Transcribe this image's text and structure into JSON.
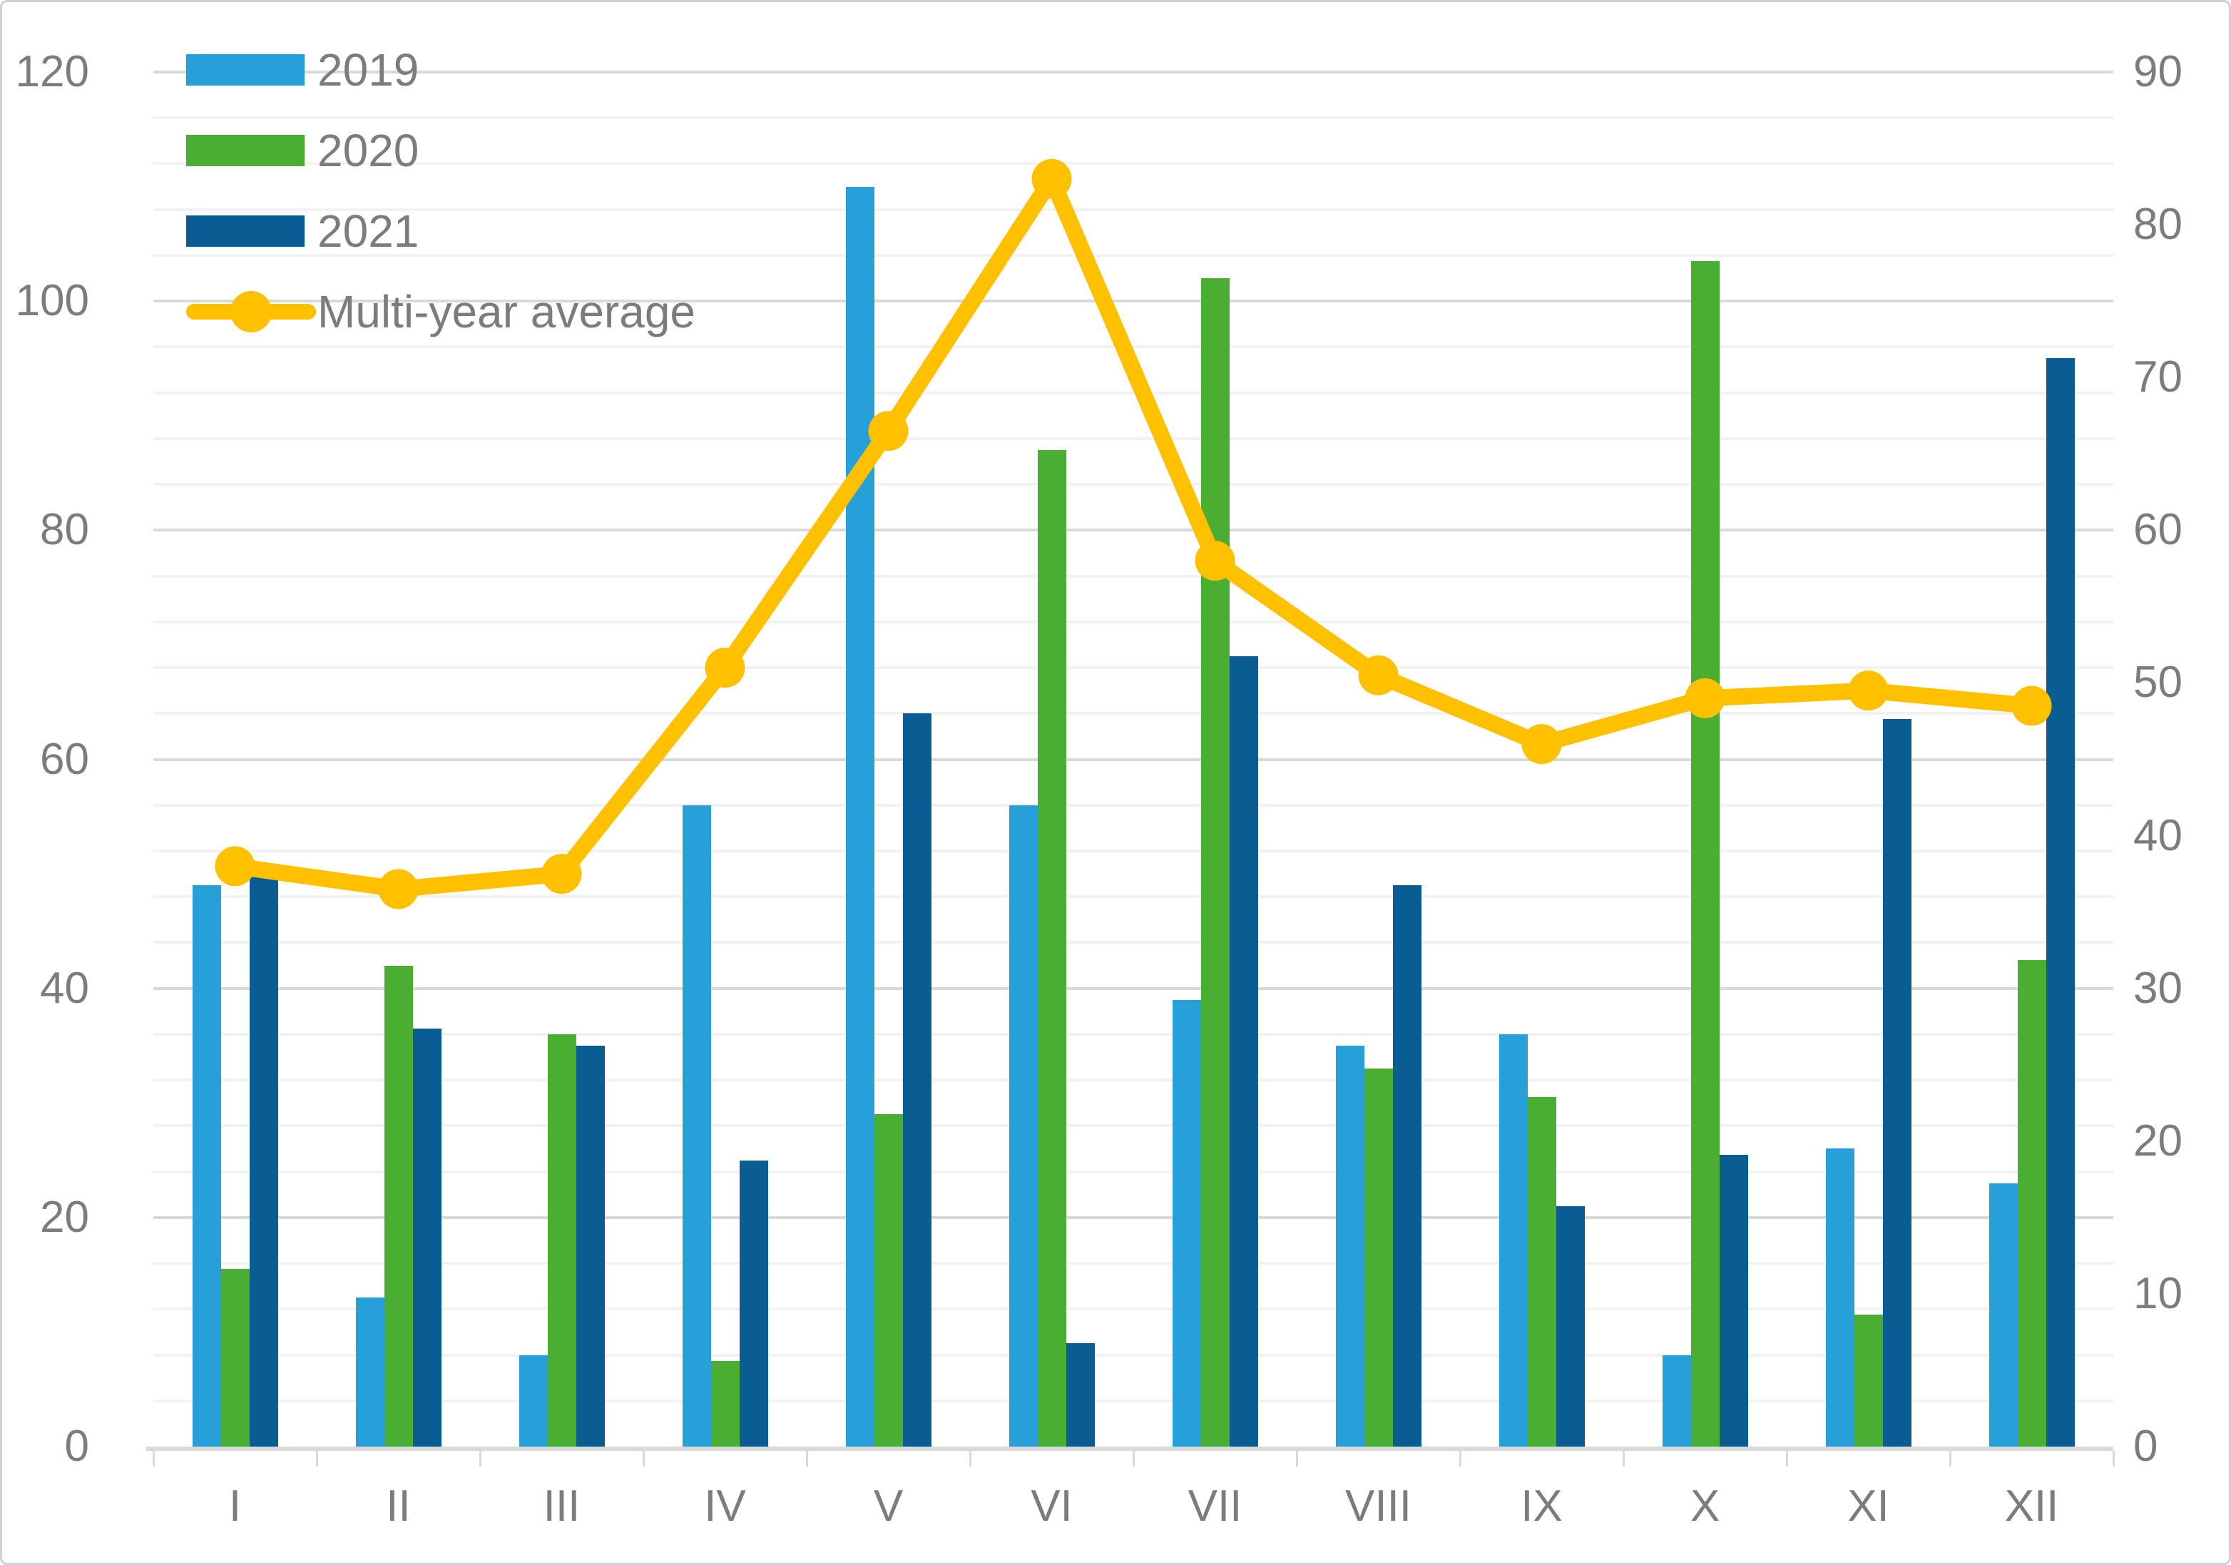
{
  "chart_data": {
    "type": "bar",
    "subtype": "grouped-bars-with-line-overlay",
    "title": "",
    "categories": [
      "I",
      "II",
      "III",
      "IV",
      "V",
      "VI",
      "VII",
      "VIII",
      "IX",
      "X",
      "XI",
      "XII"
    ],
    "series": [
      {
        "name": "2019",
        "axis": "left",
        "color": "#27a0da",
        "values": [
          49,
          13,
          8,
          56,
          110,
          56,
          39,
          35,
          36,
          8,
          26,
          23
        ]
      },
      {
        "name": "2020",
        "axis": "left",
        "color": "#4aae32",
        "values": [
          15.5,
          42,
          36,
          7.5,
          29,
          87,
          102,
          33,
          30.5,
          103.5,
          11.5,
          42.5
        ]
      },
      {
        "name": "2021",
        "axis": "left",
        "color": "#095d92",
        "values": [
          50,
          36.5,
          35,
          25,
          64,
          9,
          69,
          49,
          21,
          25.5,
          63.5,
          95
        ]
      }
    ],
    "line_series": {
      "name": "Multi-year average",
      "axis": "right",
      "color": "#ffc000",
      "values": [
        38,
        36.5,
        37.5,
        51,
        66.5,
        83,
        58,
        50.5,
        46,
        49,
        49.5,
        48.5
      ]
    },
    "left_axis": {
      "min": 0,
      "max": 120,
      "tick_labels": [
        "0",
        "20",
        "40",
        "60",
        "80",
        "100",
        "120"
      ],
      "major_step": 20,
      "minor_step": 4
    },
    "right_axis": {
      "min": 0,
      "max": 90,
      "tick_labels": [
        "0",
        "10",
        "20",
        "30",
        "40",
        "50",
        "60",
        "70",
        "80",
        "90"
      ],
      "major_step": 10
    },
    "legend": {
      "position": "top-left-inside",
      "items": [
        {
          "label": "2019",
          "color": "#27a0da",
          "marker": "square"
        },
        {
          "label": "2020",
          "color": "#4aae32",
          "marker": "square"
        },
        {
          "label": "2021",
          "color": "#095d92",
          "marker": "square"
        },
        {
          "label": "Multi-year average",
          "color": "#ffc000",
          "marker": "line-with-dot"
        }
      ]
    },
    "grid": {
      "horizontal_minor": true,
      "horizontal_major": true,
      "vertical": false
    },
    "colors": {
      "minor_gridline": "#f2f2f2",
      "major_gridline": "#d9d9d9",
      "axis_line": "#d9d9d9",
      "text": "#7c7c7c",
      "frame_border": "#d2d0d0",
      "background": "#ffffff"
    }
  }
}
